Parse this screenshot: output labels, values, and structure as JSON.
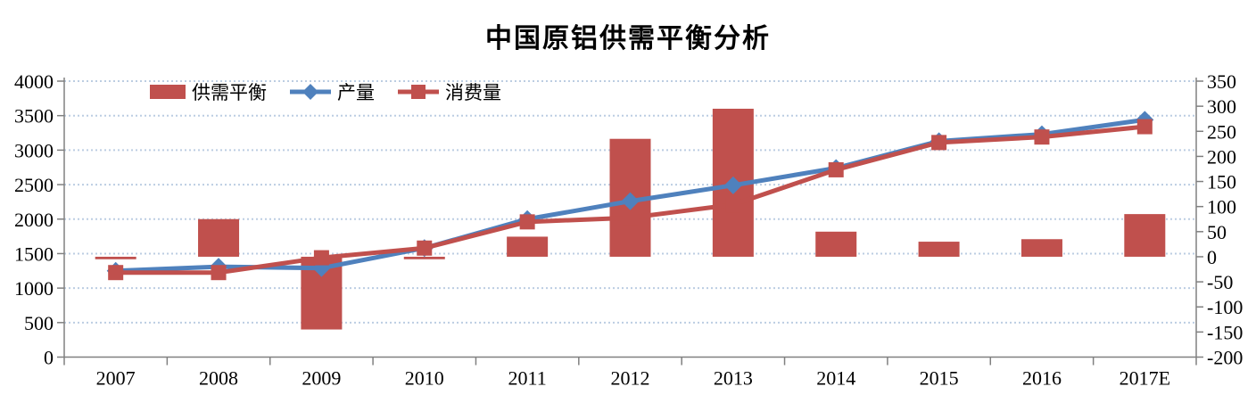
{
  "title": "中国原铝供需平衡分析",
  "chart_data": {
    "type": "bar+line combo",
    "title": "中国原铝供需平衡分析",
    "categories": [
      "2007",
      "2008",
      "2009",
      "2010",
      "2011",
      "2012",
      "2013",
      "2014",
      "2015",
      "2016",
      "2017E"
    ],
    "bar_series": {
      "name": "供需平衡",
      "axis": "right",
      "color": "#C0504D",
      "values": [
        -5,
        75,
        -145,
        -5,
        40,
        235,
        295,
        50,
        30,
        35,
        85
      ]
    },
    "line_series": [
      {
        "name": "产量",
        "axis": "left",
        "color": "#4F81BD",
        "marker": "diamond",
        "values": [
          1250,
          1310,
          1290,
          1580,
          2000,
          2260,
          2490,
          2740,
          3130,
          3230,
          3440
        ]
      },
      {
        "name": "消费量",
        "axis": "left",
        "color": "#C0504D",
        "marker": "square",
        "values": [
          1225,
          1225,
          1440,
          1580,
          1960,
          2020,
          2210,
          2715,
          3110,
          3190,
          3340
        ]
      }
    ],
    "left_axis": {
      "min": 0,
      "max": 4000,
      "step": 500,
      "tick_labels": [
        "0",
        "500",
        "1000",
        "1500",
        "2000",
        "2500",
        "3000",
        "3500",
        "4000"
      ]
    },
    "right_axis": {
      "min": -200,
      "max": 350,
      "step": 50,
      "tick_labels": [
        "-200",
        "-150",
        "-100",
        "-50",
        "0",
        "50",
        "100",
        "150",
        "200",
        "250",
        "300",
        "350"
      ]
    },
    "grid": "horizontal dotted lines aligned to left-axis ticks",
    "legend_position": "top-left inside plot",
    "colors": {
      "red": "#C0504D",
      "blue": "#4F81BD",
      "gridline": "#BCCDE2",
      "axis": "#808080"
    }
  }
}
